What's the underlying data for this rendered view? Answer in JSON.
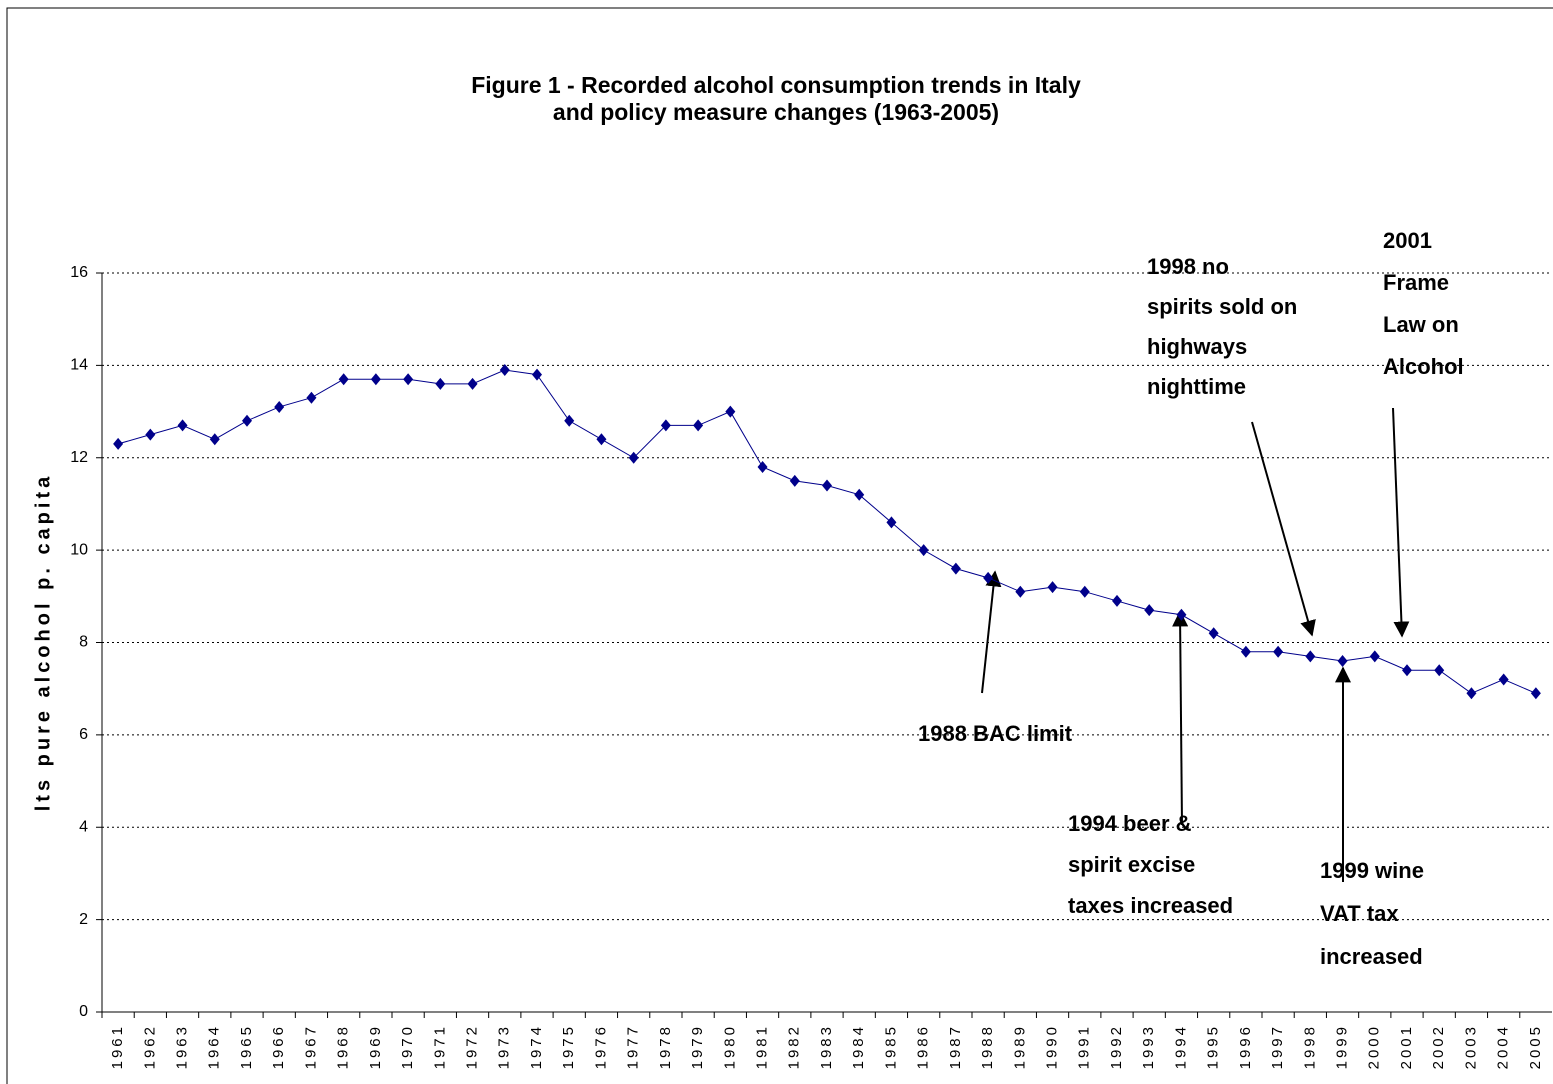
{
  "chart_data": {
    "type": "line",
    "title": [
      "Figure 1 - Recorded alcohol consumption trends in Italy",
      "and policy measure changes (1963-2005)"
    ],
    "ylabel": "lts pure alcohol p. capita",
    "categories": [
      "1961",
      "1962",
      "1963",
      "1964",
      "1965",
      "1966",
      "1967",
      "1968",
      "1969",
      "1970",
      "1971",
      "1972",
      "1973",
      "1974",
      "1975",
      "1976",
      "1977",
      "1978",
      "1979",
      "1980",
      "1981",
      "1982",
      "1983",
      "1984",
      "1985",
      "1986",
      "1987",
      "1988",
      "1989",
      "1990",
      "1991",
      "1992",
      "1993",
      "1994",
      "1995",
      "1996",
      "1997",
      "1998",
      "1999",
      "2000",
      "2001",
      "2002",
      "2003",
      "2004",
      "2005"
    ],
    "series": [
      {
        "color": "#00008b",
        "values": [
          12.3,
          12.5,
          12.7,
          12.4,
          12.8,
          13.1,
          13.3,
          13.7,
          13.7,
          13.7,
          13.6,
          13.6,
          13.9,
          13.8,
          12.8,
          12.4,
          12.0,
          12.7,
          12.7,
          13.0,
          11.8,
          11.5,
          11.4,
          11.2,
          10.6,
          10.0,
          9.6,
          9.4,
          9.1,
          9.2,
          9.1,
          8.9,
          8.7,
          8.6,
          8.2,
          7.8,
          7.8,
          7.7,
          7.6,
          7.7,
          7.4,
          7.4,
          6.9,
          7.2,
          6.9
        ]
      }
    ],
    "ylim": [
      0,
      16
    ],
    "yticks": [
      0,
      2,
      4,
      6,
      8,
      10,
      12,
      14,
      16
    ],
    "grid": true,
    "annotations": [
      {
        "lines": [
          "1998 no",
          "spirits sold on",
          "highways",
          "nighttime"
        ]
      },
      {
        "lines": [
          "2001",
          "Frame",
          "Law on",
          "Alcohol"
        ]
      },
      {
        "lines": [
          "1988 BAC limit"
        ]
      },
      {
        "lines": [
          "1994  beer &",
          "spirit excise",
          "taxes increased"
        ]
      },
      {
        "lines": [
          "1999 wine",
          "VAT tax",
          "increased"
        ]
      }
    ]
  }
}
